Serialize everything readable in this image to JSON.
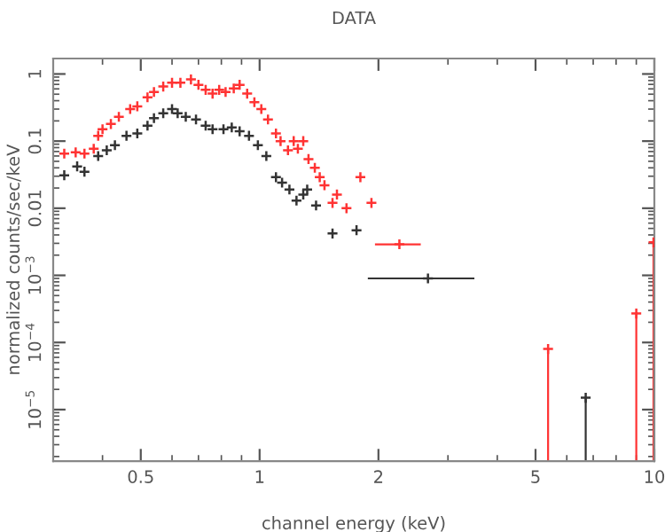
{
  "chart_data": {
    "type": "scatter",
    "title": "DATA",
    "xlabel": "channel energy (keV)",
    "ylabel": "normalized counts/sec/keV",
    "log": "xy",
    "xlim": [
      0.3,
      10
    ],
    "ylim": [
      1.7e-06,
      1.7
    ],
    "xticks": [
      0.5,
      1,
      2,
      5,
      10
    ],
    "yticks": [
      {
        "value": 1,
        "label": "1"
      },
      {
        "value": 0.1,
        "label": "0.1"
      },
      {
        "value": 0.01,
        "label": "0.01"
      },
      {
        "value": 0.001,
        "label": "10$^{−3}$"
      },
      {
        "value": 0.0001,
        "label": "10$^{−4}$"
      },
      {
        "value": 1e-05,
        "label": "10$^{−5}$"
      }
    ],
    "marker": "cross",
    "grid": false,
    "series": [
      {
        "color": "#ff3333",
        "x": [
          0.32,
          0.342,
          0.36,
          0.38,
          0.39,
          0.4,
          0.42,
          0.44,
          0.47,
          0.49,
          0.52,
          0.54,
          0.57,
          0.6,
          0.63,
          0.67,
          0.7,
          0.73,
          0.76,
          0.79,
          0.82,
          0.86,
          0.89,
          0.93,
          0.97,
          1.01,
          1.05,
          1.1,
          1.13,
          1.18,
          1.22,
          1.25,
          1.29,
          1.33,
          1.38,
          1.42,
          1.46,
          1.53,
          1.57,
          1.66,
          1.8,
          1.92,
          2.26,
          5.38,
          9.0,
          9.95
        ],
        "values": [
          0.065,
          0.068,
          0.065,
          0.077,
          0.12,
          0.15,
          0.18,
          0.23,
          0.3,
          0.33,
          0.45,
          0.54,
          0.65,
          0.74,
          0.74,
          0.83,
          0.69,
          0.58,
          0.51,
          0.58,
          0.54,
          0.61,
          0.69,
          0.51,
          0.38,
          0.3,
          0.21,
          0.13,
          0.1,
          0.073,
          0.1,
          0.077,
          0.1,
          0.054,
          0.04,
          0.029,
          0.022,
          0.012,
          0.016,
          0.01,
          0.029,
          0.012,
          0.0029,
          8e-05,
          0.00027,
          0.0031
        ],
        "errors": [
          null,
          null,
          null,
          null,
          null,
          null,
          null,
          null,
          null,
          null,
          null,
          null,
          null,
          null,
          null,
          null,
          null,
          null,
          null,
          null,
          null,
          null,
          null,
          null,
          null,
          null,
          null,
          null,
          null,
          null,
          null,
          null,
          null,
          null,
          null,
          null,
          null,
          null,
          null,
          null,
          null,
          null,
          null,
          [
            1.7e-06,
            8e-05
          ],
          [
            1.7e-06,
            0.00027
          ],
          [
            1.7e-06,
            0.0031
          ]
        ],
        "xerrors": [
          null,
          null,
          null,
          null,
          null,
          null,
          null,
          null,
          null,
          null,
          null,
          null,
          null,
          null,
          null,
          null,
          null,
          null,
          null,
          null,
          null,
          null,
          null,
          null,
          null,
          null,
          null,
          null,
          null,
          null,
          null,
          null,
          null,
          null,
          null,
          null,
          null,
          null,
          null,
          null,
          null,
          null,
          [
            1.96,
            2.56
          ],
          null,
          null,
          null
        ]
      },
      {
        "color": "#333333",
        "x": [
          0.32,
          0.345,
          0.36,
          0.39,
          0.41,
          0.43,
          0.46,
          0.49,
          0.52,
          0.54,
          0.57,
          0.6,
          0.62,
          0.65,
          0.69,
          0.73,
          0.76,
          0.81,
          0.85,
          0.89,
          0.94,
          0.99,
          1.04,
          1.1,
          1.14,
          1.19,
          1.24,
          1.29,
          1.32,
          1.39,
          1.53,
          1.76,
          2.67,
          6.7
        ],
        "values": [
          0.031,
          0.042,
          0.035,
          0.06,
          0.073,
          0.087,
          0.12,
          0.13,
          0.17,
          0.22,
          0.26,
          0.3,
          0.26,
          0.23,
          0.21,
          0.17,
          0.15,
          0.15,
          0.16,
          0.14,
          0.12,
          0.087,
          0.06,
          0.029,
          0.024,
          0.019,
          0.013,
          0.016,
          0.019,
          0.011,
          0.0042,
          0.0047,
          0.0009,
          1.5e-05
        ],
        "errors": [
          null,
          null,
          null,
          null,
          null,
          null,
          null,
          null,
          null,
          null,
          null,
          null,
          null,
          null,
          null,
          null,
          null,
          null,
          null,
          null,
          null,
          null,
          null,
          null,
          null,
          null,
          null,
          null,
          null,
          null,
          null,
          null,
          null,
          [
            1.7e-06,
            1.5e-05
          ]
        ],
        "xerrors": [
          null,
          null,
          null,
          null,
          null,
          null,
          null,
          null,
          null,
          null,
          null,
          null,
          null,
          null,
          null,
          null,
          null,
          null,
          null,
          null,
          null,
          null,
          null,
          null,
          null,
          null,
          null,
          null,
          null,
          null,
          null,
          null,
          [
            1.88,
            3.5
          ],
          null
        ]
      }
    ]
  }
}
